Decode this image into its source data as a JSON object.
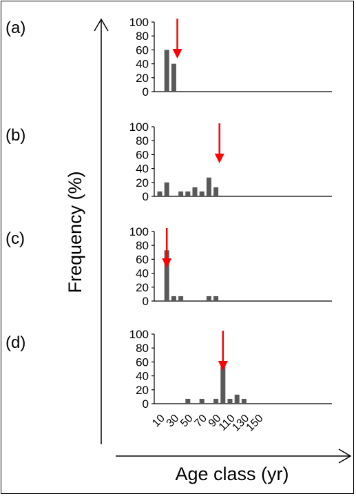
{
  "chart_data": {
    "type": "bar",
    "x_categories": [
      "10",
      "20",
      "30",
      "40",
      "50",
      "60",
      "70",
      "80",
      "90",
      "100",
      "110",
      "120",
      "130",
      "140",
      "150",
      "160"
    ],
    "x_tick_labels": [
      "10",
      "30",
      "50",
      "70",
      "90",
      "110",
      "130",
      "150"
    ],
    "y_ticks": [
      "0",
      "20",
      "40",
      "60",
      "80",
      "100"
    ],
    "ylim": [
      0,
      100
    ],
    "xlabel": "Age class (yr)",
    "ylabel": "Frequency (%)",
    "bar_color": "#595959",
    "arrow_color": "#ff0000",
    "panels": [
      {
        "label": "(a)",
        "values": [
          0,
          60,
          40,
          0,
          0,
          0,
          0,
          0,
          0,
          0,
          0,
          0,
          0,
          0,
          0,
          0
        ],
        "arrow_x": 35
      },
      {
        "label": "(b)",
        "values": [
          7,
          20,
          0,
          7,
          7,
          13,
          7,
          27,
          13,
          0,
          0,
          0,
          0,
          0,
          0,
          0
        ],
        "arrow_x": 95
      },
      {
        "label": "(c)",
        "values": [
          0,
          73,
          7,
          7,
          0,
          0,
          0,
          7,
          7,
          0,
          0,
          0,
          0,
          0,
          0,
          0
        ],
        "arrow_x": 20
      },
      {
        "label": "(d)",
        "values": [
          0,
          0,
          0,
          0,
          7,
          0,
          7,
          0,
          7,
          53,
          7,
          13,
          7,
          0,
          0,
          0
        ],
        "arrow_x": 100
      }
    ]
  }
}
